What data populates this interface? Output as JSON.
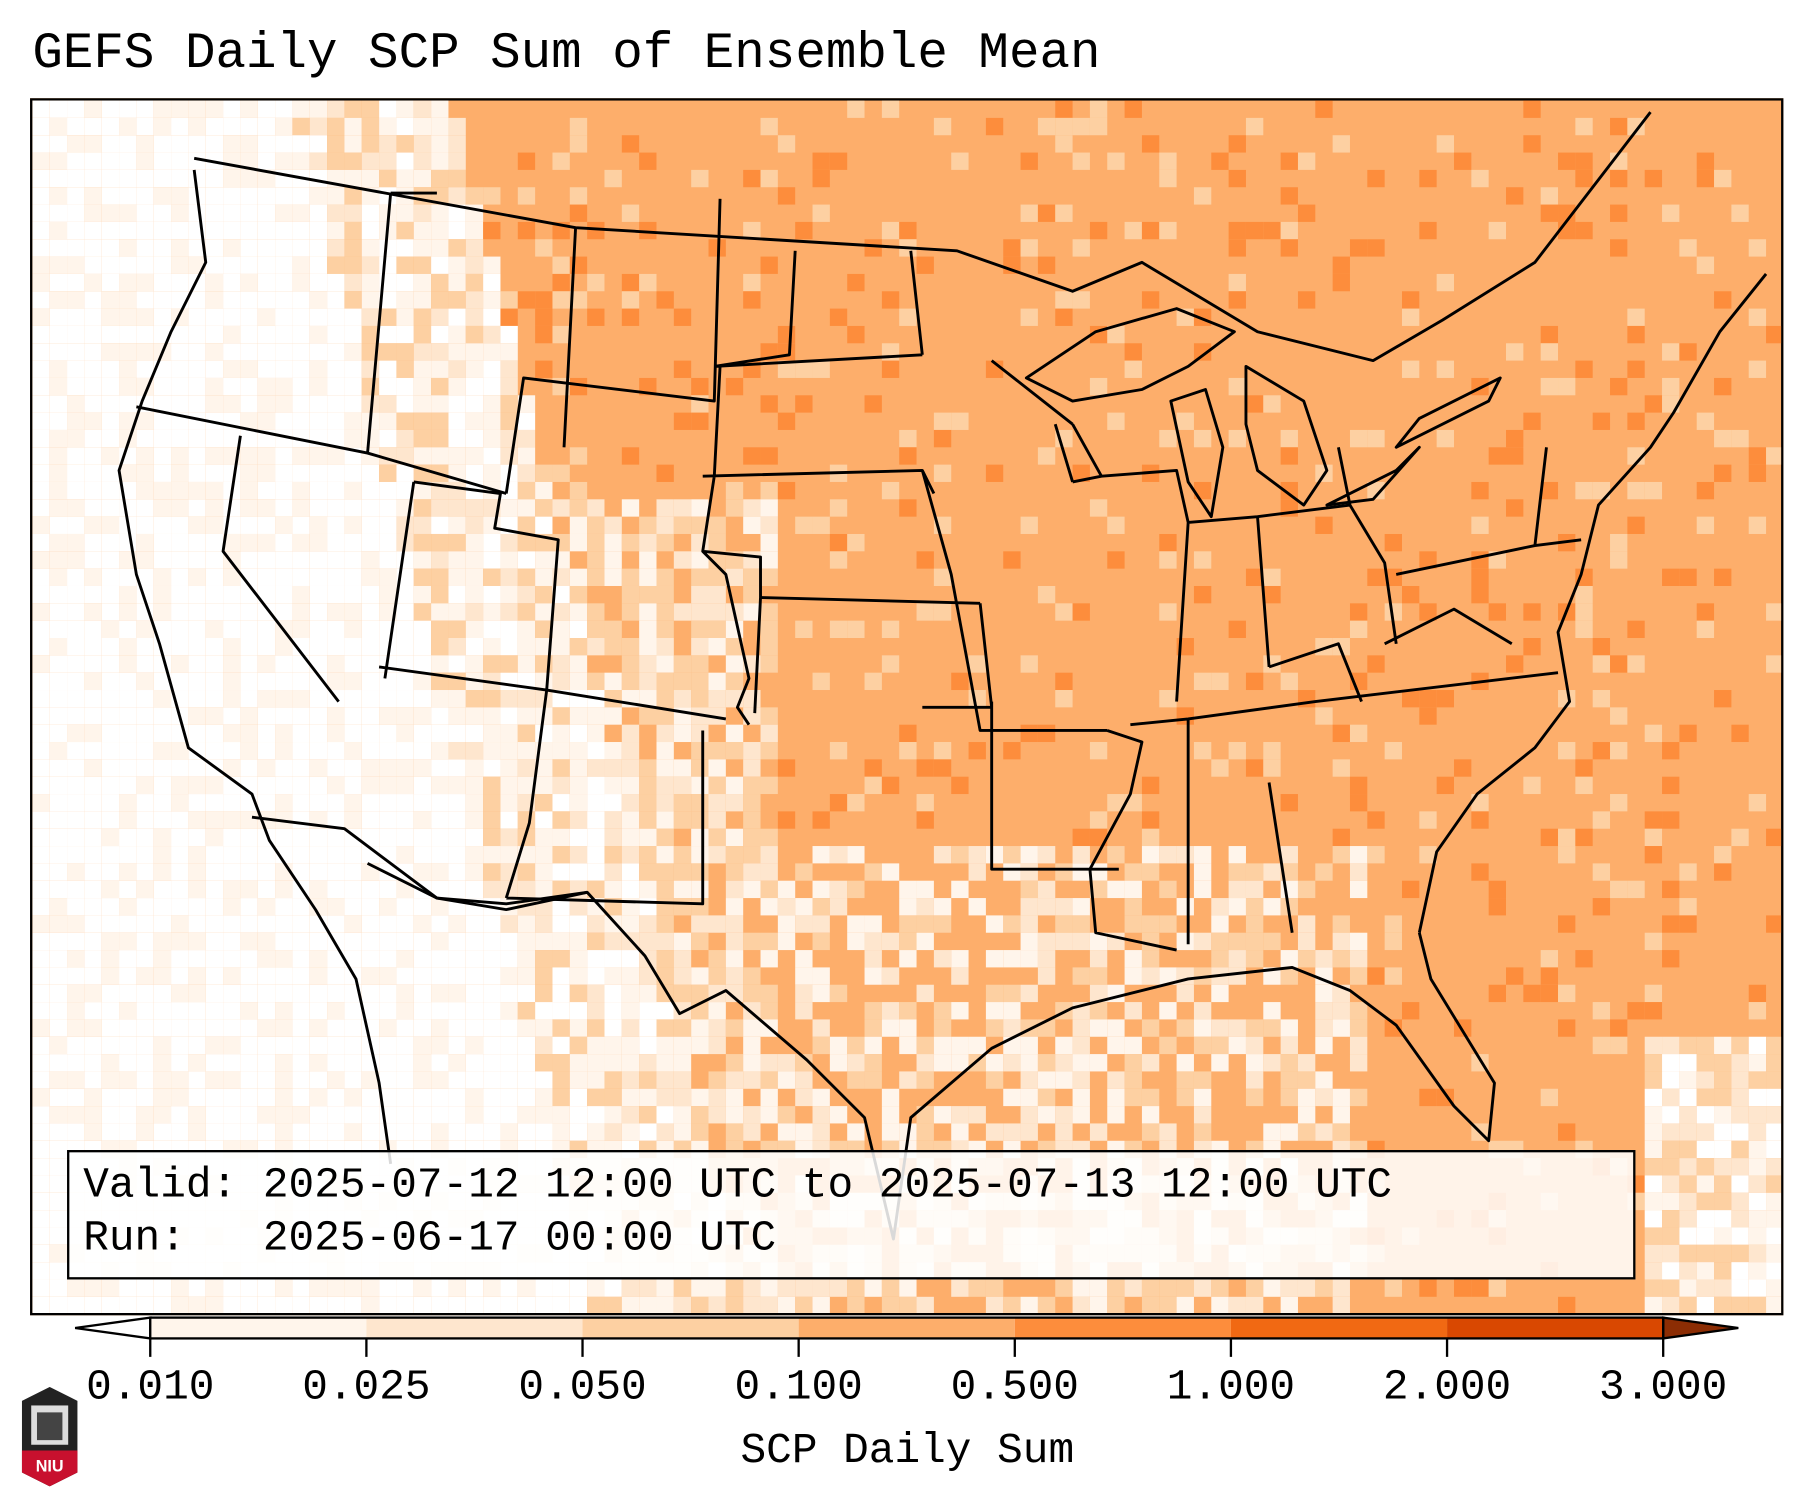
{
  "title": "GEFS Daily SCP Sum of Ensemble Mean",
  "info": {
    "valid_label": "Valid:",
    "valid_value": "2025-07-12 12:00 UTC to 2025-07-13 12:00 UTC",
    "run_label": "Run:  ",
    "run_value": "2025-06-17 00:00 UTC"
  },
  "colorbar": {
    "label": "SCP Daily Sum",
    "ticks": [
      "0.010",
      "0.025",
      "0.050",
      "0.100",
      "0.500",
      "1.000",
      "2.000",
      "3.000"
    ],
    "colors": [
      "#ffffff",
      "#fff5eb",
      "#fee6ce",
      "#fdd0a2",
      "#fdae6b",
      "#fd8d3c",
      "#f16913",
      "#d94801",
      "#8c2d04"
    ]
  },
  "logo": {
    "text": "NIU"
  }
}
